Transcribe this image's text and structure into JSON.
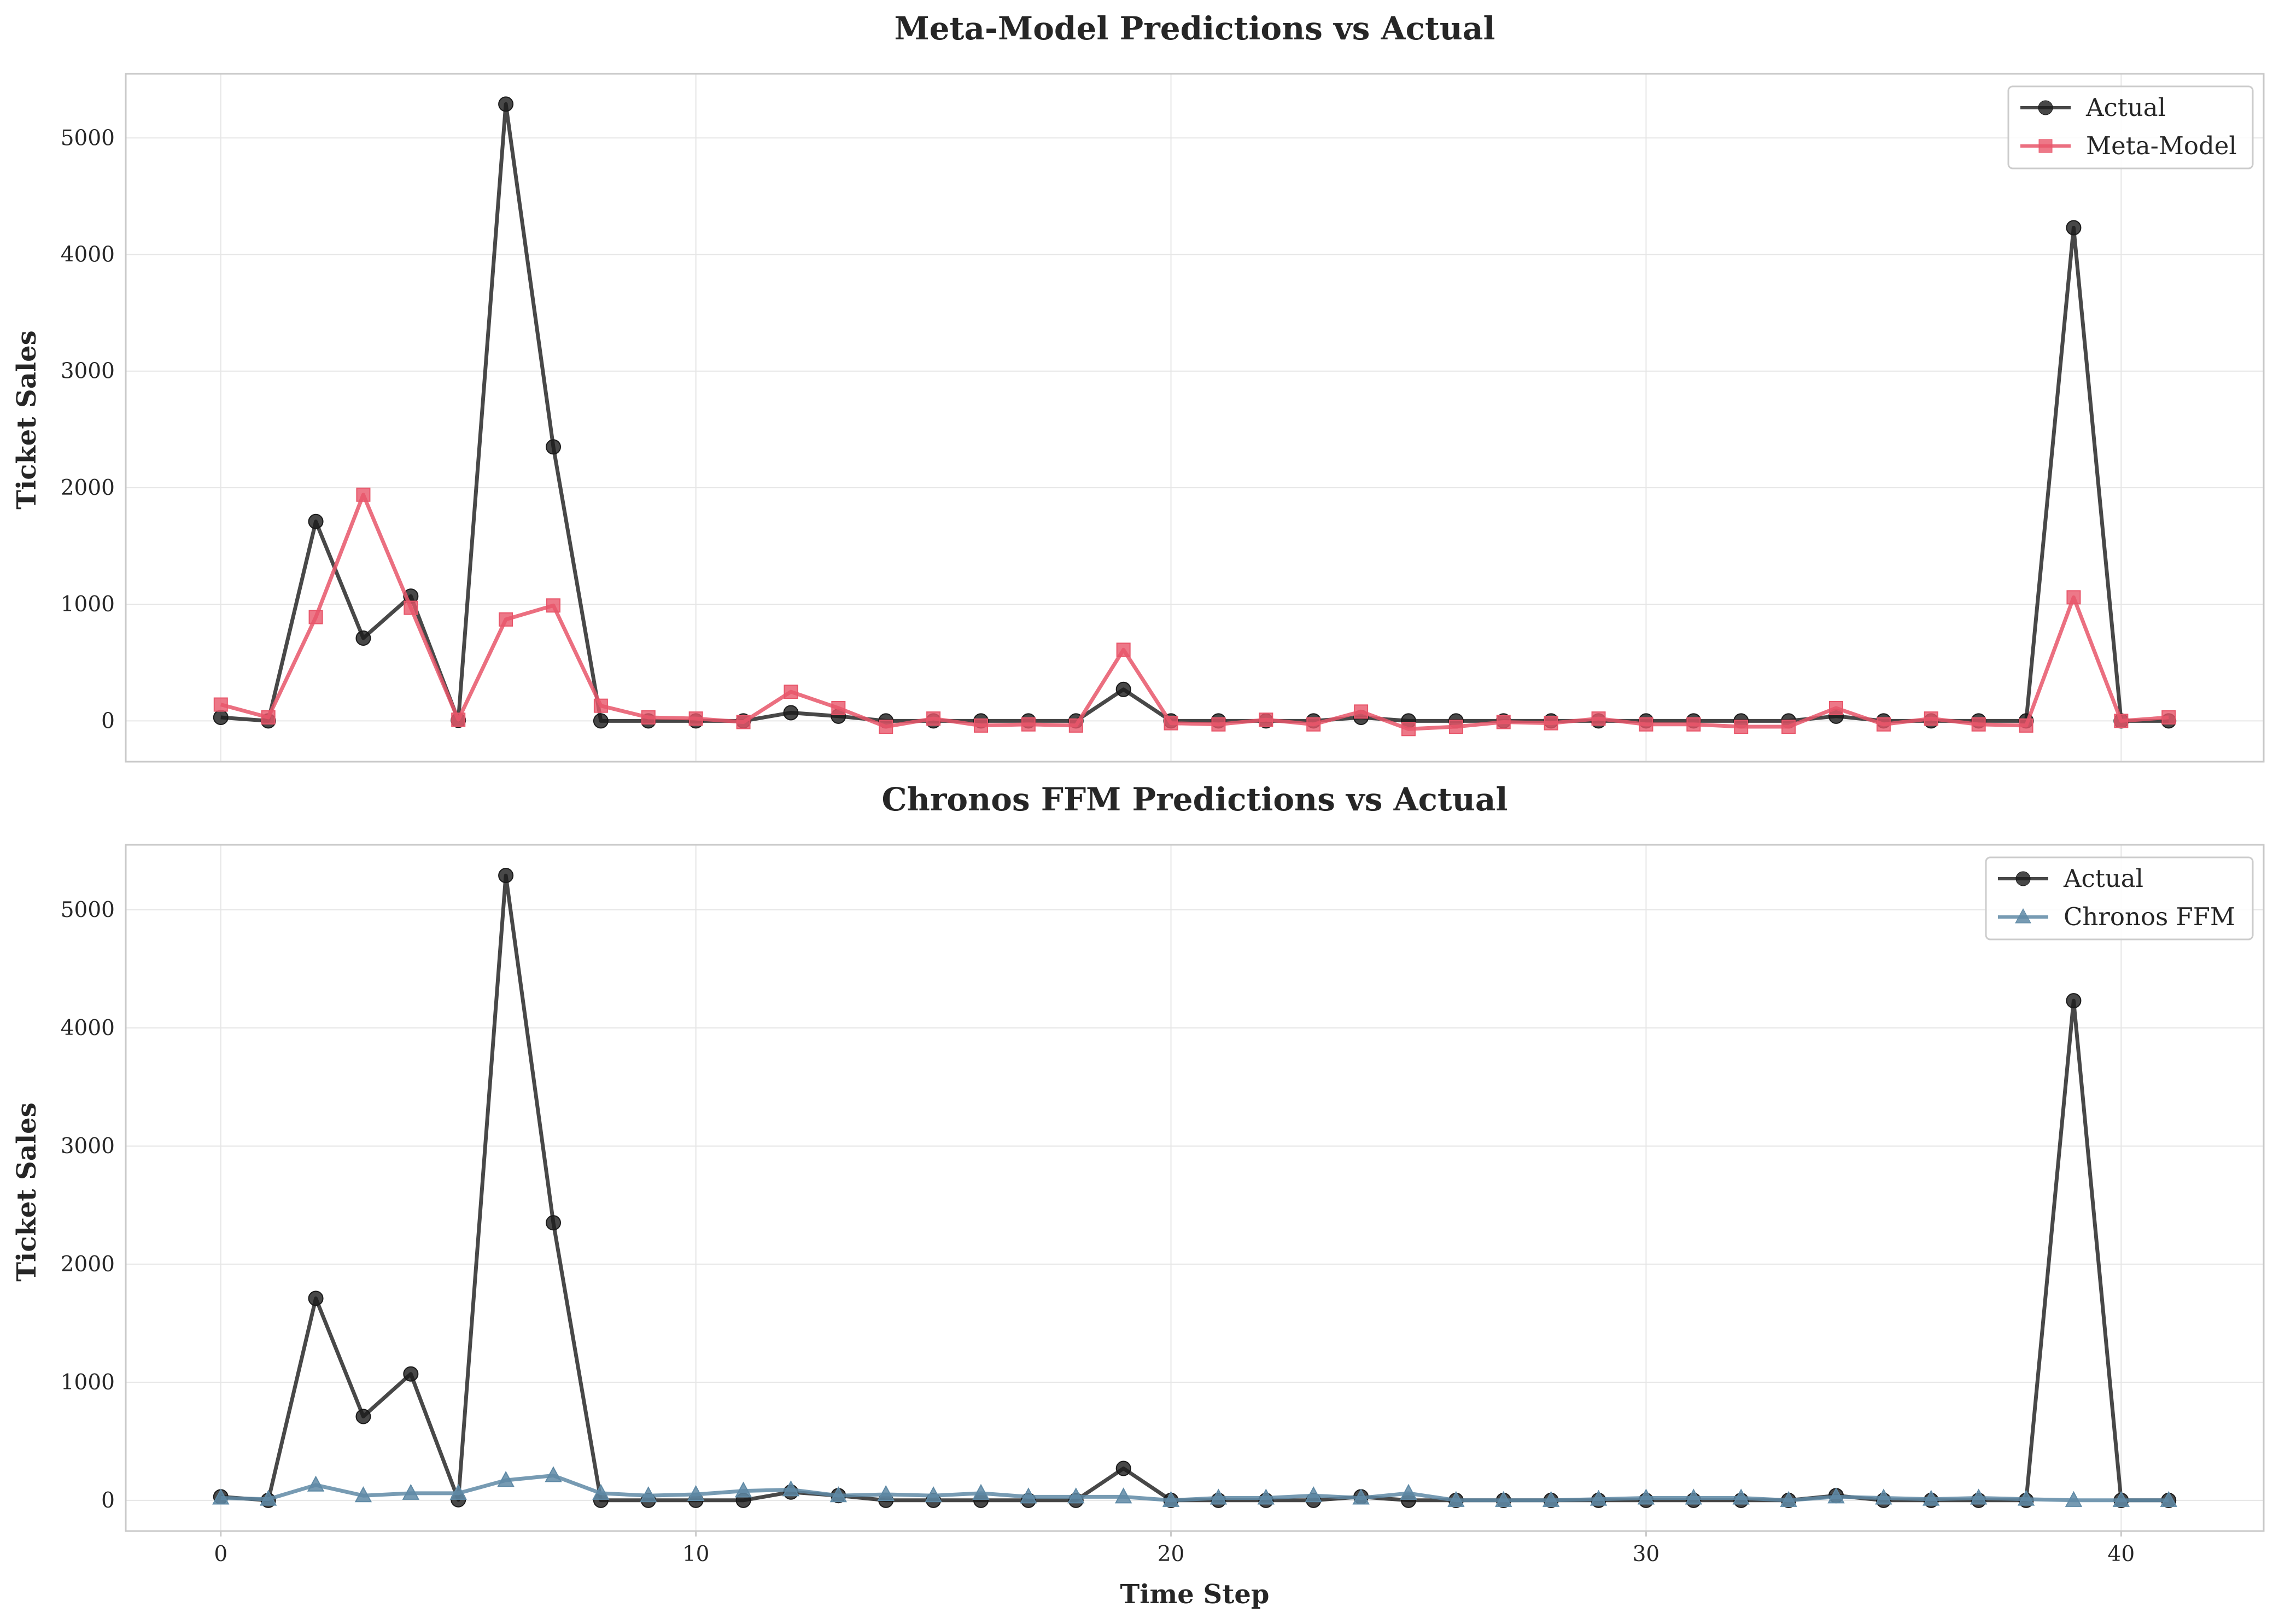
{
  "chart_data": [
    {
      "type": "line",
      "title": "Meta-Model Predictions vs Actual",
      "xlabel": "",
      "ylabel": "Ticket Sales",
      "xlim": [
        -2,
        43
      ],
      "ylim": [
        -350,
        5550
      ],
      "x_ticks": [
        0,
        10,
        20,
        30,
        40
      ],
      "y_ticks": [
        0,
        1000,
        2000,
        3000,
        4000,
        5000
      ],
      "grid": true,
      "legend": "top-right",
      "x": [
        0,
        1,
        2,
        3,
        4,
        5,
        6,
        7,
        8,
        9,
        10,
        11,
        12,
        13,
        14,
        15,
        16,
        17,
        18,
        19,
        20,
        21,
        22,
        23,
        24,
        25,
        26,
        27,
        28,
        29,
        30,
        31,
        32,
        33,
        34,
        35,
        36,
        37,
        38,
        39,
        40,
        41
      ],
      "series": [
        {
          "name": "Actual",
          "color": "#1a1a1a",
          "marker": "circle",
          "values": [
            30,
            0,
            1710,
            710,
            1070,
            5,
            5290,
            2350,
            0,
            0,
            0,
            0,
            70,
            40,
            0,
            0,
            0,
            0,
            0,
            270,
            0,
            0,
            0,
            0,
            30,
            0,
            0,
            0,
            0,
            0,
            0,
            0,
            0,
            0,
            40,
            0,
            0,
            0,
            0,
            4230,
            0,
            0
          ]
        },
        {
          "name": "Meta-Model",
          "color": "#e8566a",
          "marker": "square",
          "values": [
            140,
            30,
            890,
            1940,
            970,
            10,
            870,
            990,
            130,
            30,
            20,
            -10,
            250,
            110,
            -50,
            20,
            -40,
            -30,
            -40,
            610,
            -20,
            -30,
            10,
            -30,
            80,
            -70,
            -50,
            -10,
            -20,
            20,
            -30,
            -30,
            -50,
            -50,
            110,
            -30,
            20,
            -30,
            -40,
            1060,
            0,
            30
          ]
        }
      ]
    },
    {
      "type": "line",
      "title": "Chronos FFM Predictions vs Actual",
      "xlabel": "Time Step",
      "ylabel": "Ticket Sales",
      "xlim": [
        -2,
        43
      ],
      "ylim": [
        -260,
        5550
      ],
      "x_ticks": [
        0,
        10,
        20,
        30,
        40
      ],
      "y_ticks": [
        0,
        1000,
        2000,
        3000,
        4000,
        5000
      ],
      "grid": true,
      "legend": "top-right",
      "x": [
        0,
        1,
        2,
        3,
        4,
        5,
        6,
        7,
        8,
        9,
        10,
        11,
        12,
        13,
        14,
        15,
        16,
        17,
        18,
        19,
        20,
        21,
        22,
        23,
        24,
        25,
        26,
        27,
        28,
        29,
        30,
        31,
        32,
        33,
        34,
        35,
        36,
        37,
        38,
        39,
        40,
        41
      ],
      "series": [
        {
          "name": "Actual",
          "color": "#1a1a1a",
          "marker": "circle",
          "values": [
            30,
            0,
            1710,
            710,
            1070,
            5,
            5290,
            2350,
            0,
            0,
            0,
            0,
            70,
            40,
            0,
            0,
            0,
            0,
            0,
            270,
            0,
            0,
            0,
            0,
            30,
            0,
            0,
            0,
            0,
            0,
            0,
            0,
            0,
            0,
            40,
            0,
            0,
            0,
            0,
            4230,
            0,
            0
          ]
        },
        {
          "name": "Chronos FFM",
          "color": "#5f8aa6",
          "marker": "triangle",
          "values": [
            20,
            10,
            130,
            40,
            60,
            60,
            170,
            210,
            60,
            40,
            50,
            80,
            90,
            40,
            50,
            40,
            60,
            30,
            30,
            30,
            0,
            20,
            20,
            40,
            20,
            60,
            0,
            0,
            0,
            10,
            20,
            20,
            20,
            0,
            30,
            20,
            10,
            20,
            10,
            0,
            0,
            0
          ]
        }
      ]
    }
  ]
}
